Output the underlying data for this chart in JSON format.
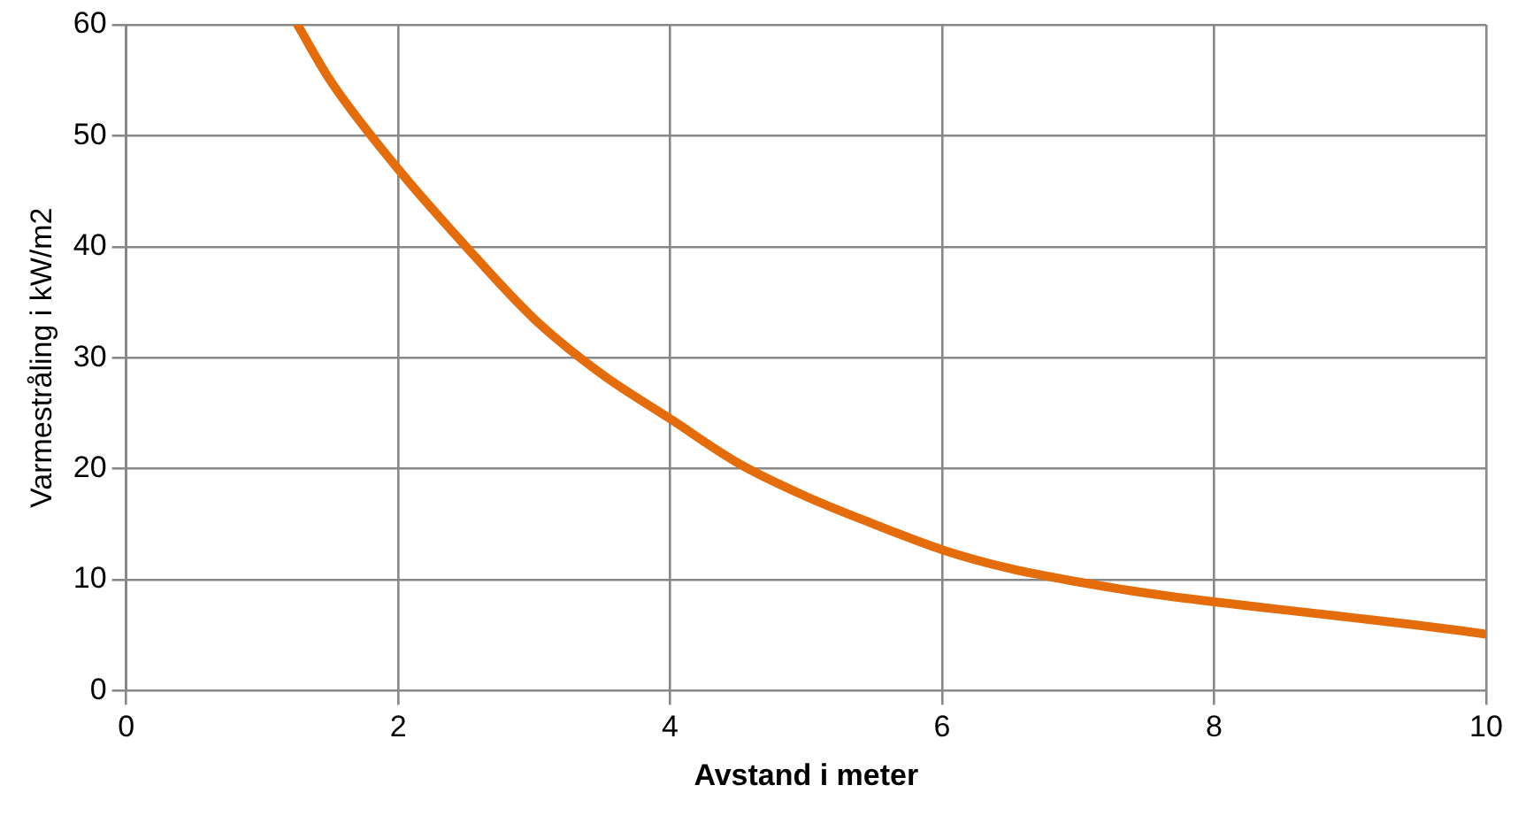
{
  "chart_data": {
    "type": "line",
    "xlabel": "Avstand i meter",
    "ylabel": "Varmestråling i kW/m2",
    "x": [
      1.26,
      1.5,
      2,
      2.5,
      3,
      3.5,
      4,
      4.5,
      5,
      5.5,
      6,
      6.5,
      7,
      7.5,
      8,
      8.5,
      9,
      9.5,
      10
    ],
    "series": [
      {
        "color": "#e46c0a",
        "values": [
          60,
          55,
          47,
          40,
          33.5,
          28.5,
          24.5,
          20.5,
          17.5,
          15,
          12.7,
          11,
          9.8,
          8.8,
          8,
          7.3,
          6.6,
          5.9,
          5.1
        ]
      }
    ],
    "xlim": [
      0,
      10
    ],
    "xticks": [
      0,
      2,
      4,
      6,
      8,
      10
    ],
    "ylim": [
      0,
      60
    ],
    "yticks": [
      0,
      10,
      20,
      30,
      40,
      50,
      60
    ],
    "grid": true,
    "legend": false,
    "marker": "none",
    "line_style": "solid"
  }
}
